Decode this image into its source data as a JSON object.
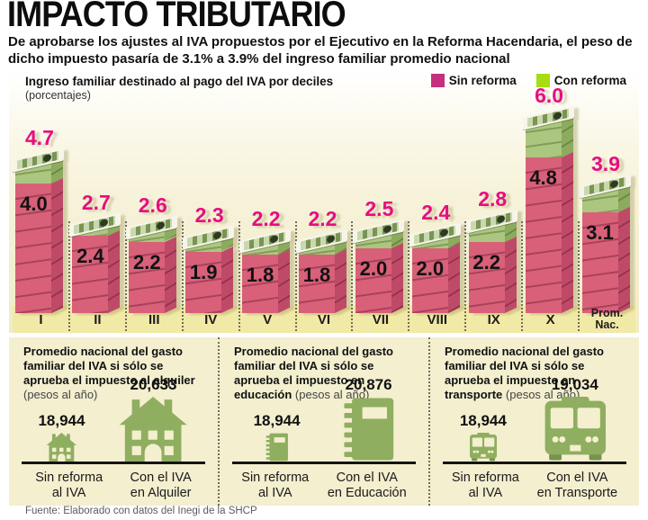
{
  "header": {
    "title": "IMPACTO TRIBUTARIO",
    "subtitle": "De aprobarse los ajustes al IVA propuestos por el Ejecutivo en la Reforma Hacendaria, el peso de dicho impuesto pasaría de 3.1% a 3.9% del ingreso familiar promedio nacional"
  },
  "chart": {
    "label": "Ingreso familiar destinado al pago del IVA por deciles",
    "sublabel": "(porcentajes)",
    "legend": [
      {
        "label": "Sin reforma",
        "color": "#c4307e"
      },
      {
        "label": "Con reforma",
        "color": "#a6de12"
      }
    ]
  },
  "chart_data": {
    "type": "bar",
    "title": "Ingreso familiar destinado al pago del IVA por deciles",
    "unit": "porcentajes",
    "categories": [
      "I",
      "II",
      "III",
      "IV",
      "V",
      "VI",
      "VII",
      "VIII",
      "IX",
      "X",
      "Prom. Nac."
    ],
    "series": [
      {
        "name": "Sin reforma",
        "values": [
          4.0,
          2.4,
          2.2,
          1.9,
          1.8,
          1.8,
          2.0,
          2.0,
          2.2,
          4.8,
          3.1
        ]
      },
      {
        "name": "Con reforma",
        "values": [
          4.7,
          2.7,
          2.6,
          2.3,
          2.2,
          2.2,
          2.5,
          2.4,
          2.8,
          6.0,
          3.9
        ]
      }
    ],
    "value_labels": true,
    "legend_position": "top-right",
    "grid": false
  },
  "panels": [
    {
      "heading": "Promedio nacional del gasto familiar del IVA si sólo se aprueba el impuesto al alquiler",
      "note": "(pesos al año)",
      "items": [
        {
          "value": "18,944",
          "label": "Sin reforma\nal IVA",
          "icon": "house-icon",
          "size": "small"
        },
        {
          "value": "20,633",
          "label": "Con el IVA\nen Alquiler",
          "icon": "house-icon",
          "size": "large"
        }
      ]
    },
    {
      "heading": "Promedio nacional del gasto familiar del IVA si sólo se aprueba el impuesto en educación",
      "note": "(pesos al año)",
      "items": [
        {
          "value": "18,944",
          "label": "Sin reforma\nal IVA",
          "icon": "notebook-icon",
          "size": "small"
        },
        {
          "value": "20,876",
          "label": "Con el IVA\nen Educación",
          "icon": "notebook-icon",
          "size": "large"
        }
      ]
    },
    {
      "heading": "Promedio nacional del gasto familiar del IVA si sólo se aprueba el impuesto en transporte",
      "note": "(pesos al año)",
      "items": [
        {
          "value": "18,944",
          "label": "Sin reforma\nal IVA",
          "icon": "bus-icon",
          "size": "small"
        },
        {
          "value": "19,034",
          "label": "Con el IVA\nen Transporte",
          "icon": "bus-icon",
          "size": "large"
        }
      ]
    }
  ],
  "footer": {
    "source": "Fuente: Elaborado con datos del Inegi de la SHCP"
  },
  "colors": {
    "legend_pink": "#c4307e",
    "legend_green": "#a6de12",
    "value_con": "#e80d80",
    "bar_pink_front": "#d96079",
    "bar_pink_side": "#bf4a67",
    "bar_green_front": "#abc67e",
    "bar_green_side": "#8cab5e",
    "icon_green": "#8fae60"
  }
}
